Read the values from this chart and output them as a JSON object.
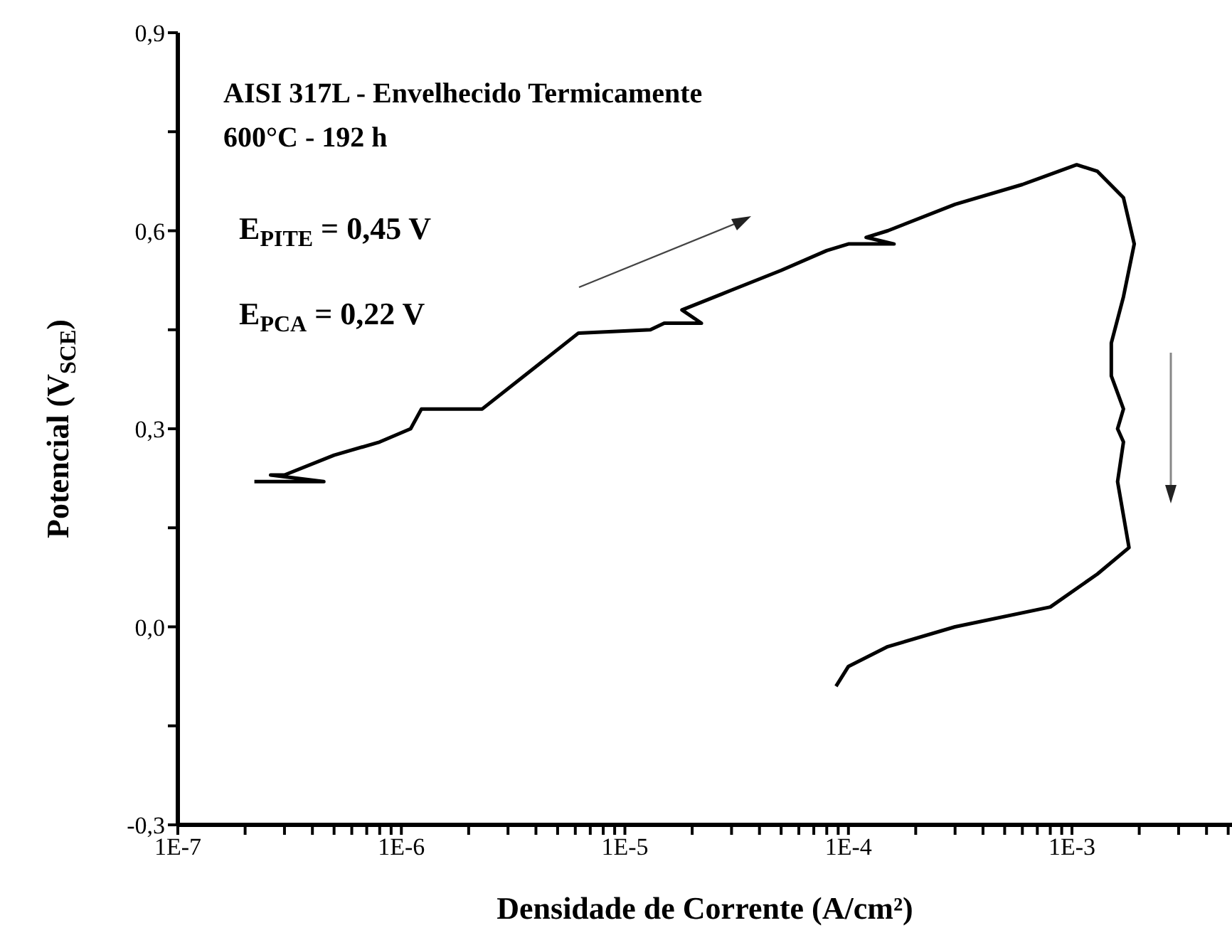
{
  "chart_data": {
    "type": "line",
    "title": "AISI 317L - Envelhecido Termicamente",
    "subtitle": "600°C - 192 h",
    "xlabel": "Densidade de Corrente (A/cm²)",
    "ylabel": "Potencial (V$_{SCE}$)",
    "annotations": [
      "E$_{PITE}$ = 0,45 V",
      "E$_{PCA}$ = 0,22 V"
    ],
    "log": "x",
    "marker": "none",
    "color": "#000000",
    "xlim": [
      1e-07,
      0.0052
    ],
    "ylim": [
      -0.3,
      0.9
    ],
    "xticks": [
      {
        "value": 1e-07,
        "label": "1E-7"
      },
      {
        "value": 2e-07,
        "label": null
      },
      {
        "value": 3e-07,
        "label": null
      },
      {
        "value": 4e-07,
        "label": null
      },
      {
        "value": 5e-07,
        "label": null
      },
      {
        "value": 6e-07,
        "label": null
      },
      {
        "value": 7e-07,
        "label": null
      },
      {
        "value": 8e-07,
        "label": null
      },
      {
        "value": 9e-07,
        "label": null
      },
      {
        "value": 1e-06,
        "label": "1E-6"
      },
      {
        "value": 2e-06,
        "label": null
      },
      {
        "value": 3e-06,
        "label": null
      },
      {
        "value": 4e-06,
        "label": null
      },
      {
        "value": 5e-06,
        "label": null
      },
      {
        "value": 6e-06,
        "label": null
      },
      {
        "value": 7e-06,
        "label": null
      },
      {
        "value": 8e-06,
        "label": null
      },
      {
        "value": 9e-06,
        "label": null
      },
      {
        "value": 1e-05,
        "label": "1E-5"
      },
      {
        "value": 2e-05,
        "label": null
      },
      {
        "value": 3e-05,
        "label": null
      },
      {
        "value": 4e-05,
        "label": null
      },
      {
        "value": 5e-05,
        "label": null
      },
      {
        "value": 6e-05,
        "label": null
      },
      {
        "value": 7e-05,
        "label": null
      },
      {
        "value": 8e-05,
        "label": null
      },
      {
        "value": 9e-05,
        "label": null
      },
      {
        "value": 0.0001,
        "label": "1E-4"
      },
      {
        "value": 0.0002,
        "label": null
      },
      {
        "value": 0.0003,
        "label": null
      },
      {
        "value": 0.0004,
        "label": null
      },
      {
        "value": 0.0005,
        "label": null
      },
      {
        "value": 0.0006,
        "label": null
      },
      {
        "value": 0.0007,
        "label": null
      },
      {
        "value": 0.0008,
        "label": null
      },
      {
        "value": 0.0009,
        "label": null
      },
      {
        "value": 0.001,
        "label": "1E-3"
      },
      {
        "value": 0.002,
        "label": null
      },
      {
        "value": 0.003,
        "label": null
      },
      {
        "value": 0.004,
        "label": null
      },
      {
        "value": 0.005,
        "label": null
      }
    ],
    "yticks": [
      {
        "value": -0.3,
        "label": "-0,3"
      },
      {
        "value": -0.15,
        "label": null
      },
      {
        "value": 0,
        "label": "0,0"
      },
      {
        "value": 0.15,
        "label": null
      },
      {
        "value": 0.3,
        "label": "0,3"
      },
      {
        "value": 0.45,
        "label": null
      },
      {
        "value": 0.6,
        "label": "0,6"
      },
      {
        "value": 0.75,
        "label": null
      },
      {
        "value": 0.9,
        "label": "0,9"
      }
    ],
    "x": [
      2.2e-07,
      4.5e-07,
      2.6e-07,
      3e-07,
      5e-07,
      8e-07,
      1.1e-06,
      1.23e-06,
      2.3e-06,
      6.2e-06,
      1.3e-05,
      1.5e-05,
      2.2e-05,
      1.8e-05,
      3e-05,
      5e-05,
      8e-05,
      0.0001,
      0.00016,
      0.00012,
      0.00015,
      0.0003,
      0.0006,
      0.00105,
      0.0013,
      0.0017,
      0.0019,
      0.0017,
      0.0015,
      0.0015,
      0.0017,
      0.0016,
      0.0017,
      0.0016,
      0.0018,
      0.0013,
      0.0008,
      0.0003,
      0.00015,
      0.0001,
      8.8e-05
    ],
    "values": [
      0.22,
      0.22,
      0.23,
      0.23,
      0.26,
      0.28,
      0.3,
      0.33,
      0.33,
      0.445,
      0.45,
      0.46,
      0.46,
      0.48,
      0.51,
      0.54,
      0.57,
      0.58,
      0.58,
      0.59,
      0.6,
      0.64,
      0.67,
      0.7,
      0.69,
      0.65,
      0.58,
      0.5,
      0.43,
      0.38,
      0.33,
      0.3,
      0.28,
      0.22,
      0.12,
      0.08,
      0.03,
      0.0,
      -0.03,
      -0.06,
      -0.09
    ]
  }
}
